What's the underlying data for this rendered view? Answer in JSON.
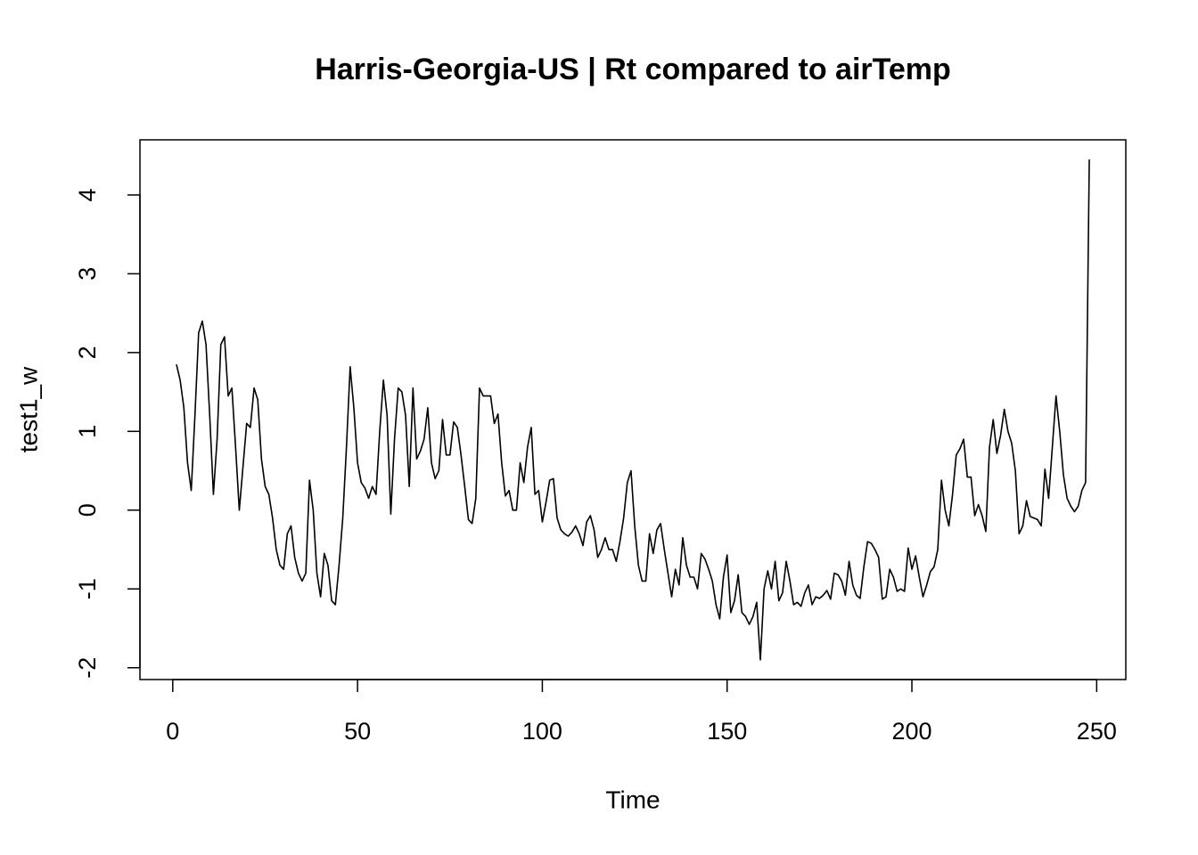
{
  "chart_data": {
    "type": "line",
    "title": "Harris-Georgia-US | Rt compared to airTemp",
    "x_label": "Time",
    "y_label": "test1_w",
    "color": "#000000",
    "xlim": [
      -8.88,
      257.88
    ],
    "ylim": [
      -2.15,
      4.7
    ],
    "xticks": [
      0,
      50,
      100,
      150,
      200,
      250
    ],
    "yticks": [
      -2,
      -1,
      0,
      1,
      2,
      3,
      4
    ],
    "x": [
      1,
      2,
      3,
      4,
      5,
      6,
      7,
      8,
      9,
      10,
      11,
      12,
      13,
      14,
      15,
      16,
      17,
      18,
      19,
      20,
      21,
      22,
      23,
      24,
      25,
      26,
      27,
      28,
      29,
      30,
      31,
      32,
      33,
      34,
      35,
      36,
      37,
      38,
      39,
      40,
      41,
      42,
      43,
      44,
      45,
      46,
      47,
      48,
      49,
      50,
      51,
      52,
      53,
      54,
      55,
      56,
      57,
      58,
      59,
      60,
      61,
      62,
      63,
      64,
      65,
      66,
      67,
      68,
      69,
      70,
      71,
      72,
      73,
      74,
      75,
      76,
      77,
      78,
      79,
      80,
      81,
      82,
      83,
      84,
      85,
      86,
      87,
      88,
      89,
      90,
      91,
      92,
      93,
      94,
      95,
      96,
      97,
      98,
      99,
      100,
      101,
      102,
      103,
      104,
      105,
      106,
      107,
      108,
      109,
      110,
      111,
      112,
      113,
      114,
      115,
      116,
      117,
      118,
      119,
      120,
      121,
      122,
      123,
      124,
      125,
      126,
      127,
      128,
      129,
      130,
      131,
      132,
      133,
      134,
      135,
      136,
      137,
      138,
      139,
      140,
      141,
      142,
      143,
      144,
      145,
      146,
      147,
      148,
      149,
      150,
      151,
      152,
      153,
      154,
      155,
      156,
      157,
      158,
      159,
      160,
      161,
      162,
      163,
      164,
      165,
      166,
      167,
      168,
      169,
      170,
      171,
      172,
      173,
      174,
      175,
      176,
      177,
      178,
      179,
      180,
      181,
      182,
      183,
      184,
      185,
      186,
      187,
      188,
      189,
      190,
      191,
      192,
      193,
      194,
      195,
      196,
      197,
      198,
      199,
      200,
      201,
      202,
      203,
      204,
      205,
      206,
      207,
      208,
      209,
      210,
      211,
      212,
      213,
      214,
      215,
      216,
      217,
      218,
      219,
      220,
      221,
      222,
      223,
      224,
      225,
      226,
      227,
      228,
      229,
      230,
      231,
      232,
      233,
      234,
      235,
      236,
      237,
      238,
      239,
      240,
      241,
      242,
      243,
      244,
      245,
      246,
      247,
      248
    ],
    "values": [
      1.85,
      1.65,
      1.3,
      0.6,
      0.25,
      1.2,
      2.25,
      2.4,
      2.1,
      1.2,
      0.2,
      0.9,
      2.1,
      2.2,
      1.45,
      1.55,
      0.8,
      0.0,
      0.55,
      1.1,
      1.05,
      1.55,
      1.4,
      0.65,
      0.3,
      0.2,
      -0.1,
      -0.5,
      -0.7,
      -0.75,
      -0.3,
      -0.2,
      -0.6,
      -0.8,
      -0.9,
      -0.8,
      0.38,
      0.0,
      -0.8,
      -1.1,
      -0.55,
      -0.7,
      -1.15,
      -1.2,
      -0.7,
      -0.1,
      0.8,
      1.82,
      1.3,
      0.6,
      0.35,
      0.28,
      0.15,
      0.3,
      0.2,
      1.0,
      1.65,
      1.2,
      -0.05,
      0.9,
      1.55,
      1.5,
      1.2,
      0.3,
      1.55,
      0.65,
      0.75,
      0.9,
      1.3,
      0.6,
      0.4,
      0.5,
      1.15,
      0.7,
      0.7,
      1.12,
      1.05,
      0.7,
      0.3,
      -0.12,
      -0.17,
      0.15,
      1.55,
      1.45,
      1.45,
      1.45,
      1.1,
      1.22,
      0.6,
      0.18,
      0.25,
      0.0,
      0.0,
      0.6,
      0.35,
      0.8,
      1.05,
      0.2,
      0.25,
      -0.15,
      0.1,
      0.38,
      0.4,
      -0.1,
      -0.25,
      -0.3,
      -0.33,
      -0.28,
      -0.2,
      -0.3,
      -0.45,
      -0.15,
      -0.07,
      -0.25,
      -0.6,
      -0.5,
      -0.35,
      -0.5,
      -0.5,
      -0.65,
      -0.4,
      -0.1,
      0.35,
      0.5,
      -0.2,
      -0.7,
      -0.9,
      -0.9,
      -0.3,
      -0.55,
      -0.25,
      -0.17,
      -0.5,
      -0.8,
      -1.1,
      -0.75,
      -0.95,
      -0.35,
      -0.7,
      -0.85,
      -0.85,
      -1.0,
      -0.55,
      -0.62,
      -0.75,
      -0.9,
      -1.2,
      -1.38,
      -0.85,
      -0.57,
      -1.3,
      -1.15,
      -0.82,
      -1.3,
      -1.35,
      -1.45,
      -1.35,
      -1.17,
      -1.9,
      -1.0,
      -0.77,
      -1.0,
      -0.65,
      -1.15,
      -1.05,
      -0.65,
      -0.9,
      -1.2,
      -1.17,
      -1.22,
      -1.05,
      -0.95,
      -1.2,
      -1.1,
      -1.12,
      -1.08,
      -1.02,
      -1.13,
      -0.8,
      -0.82,
      -0.9,
      -1.08,
      -0.65,
      -0.95,
      -1.08,
      -1.12,
      -0.72,
      -0.4,
      -0.42,
      -0.5,
      -0.6,
      -1.13,
      -1.1,
      -0.75,
      -0.85,
      -1.03,
      -1.0,
      -1.03,
      -0.48,
      -0.75,
      -0.58,
      -0.85,
      -1.1,
      -0.95,
      -0.78,
      -0.72,
      -0.5,
      0.38,
      0.0,
      -0.2,
      0.2,
      0.7,
      0.78,
      0.9,
      0.42,
      0.42,
      -0.07,
      0.07,
      -0.07,
      -0.27,
      0.8,
      1.15,
      0.72,
      0.95,
      1.28,
      1.0,
      0.85,
      0.5,
      -0.3,
      -0.2,
      0.12,
      -0.08,
      -0.1,
      -0.12,
      -0.2,
      0.52,
      0.15,
      0.8,
      1.45,
      1.0,
      0.45,
      0.15,
      0.05,
      -0.02,
      0.05,
      0.25,
      0.35,
      4.45
    ]
  }
}
